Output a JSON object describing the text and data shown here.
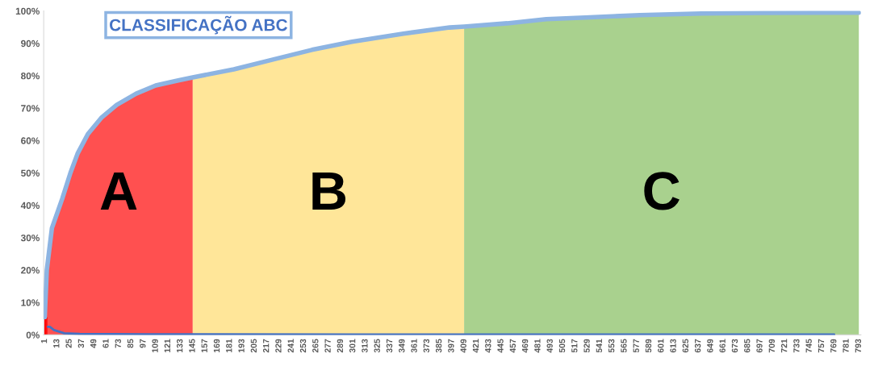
{
  "chart_data": {
    "type": "area",
    "title": "CLASSIFICAÇÃO ABC",
    "xlim": [
      0,
      795
    ],
    "ylim": [
      0,
      100
    ],
    "xticks": [
      1,
      13,
      25,
      37,
      49,
      61,
      73,
      85,
      97,
      109,
      121,
      133,
      145,
      157,
      169,
      181,
      193,
      205,
      217,
      229,
      241,
      253,
      265,
      277,
      289,
      301,
      313,
      325,
      337,
      349,
      361,
      373,
      385,
      397,
      409,
      421,
      433,
      445,
      457,
      469,
      481,
      493,
      505,
      517,
      529,
      541,
      553,
      565,
      577,
      589,
      601,
      613,
      625,
      637,
      649,
      661,
      673,
      685,
      697,
      709,
      721,
      733,
      745,
      757,
      769,
      781,
      793
    ],
    "yticks": [
      {
        "value": 0,
        "label": "0%"
      },
      {
        "value": 10,
        "label": "10%"
      },
      {
        "value": 20,
        "label": "20%"
      },
      {
        "value": 30,
        "label": "30%"
      },
      {
        "value": 40,
        "label": "40%"
      },
      {
        "value": 50,
        "label": "50%"
      },
      {
        "value": 60,
        "label": "60%"
      },
      {
        "value": 70,
        "label": "70%"
      },
      {
        "value": 80,
        "label": "80%"
      },
      {
        "value": 90,
        "label": "90%"
      },
      {
        "value": 100,
        "label": "100%"
      }
    ],
    "grid": false,
    "legend": false,
    "series": [
      {
        "name": "A",
        "color": "#ff5050",
        "x": [
          1,
          3,
          8,
          18,
          26,
          33,
          43,
          56,
          71,
          90,
          109,
          130,
          145
        ],
        "values": [
          5.5,
          20,
          33,
          42,
          50,
          56,
          62,
          67,
          71,
          74.5,
          77,
          78.5,
          79.5
        ]
      },
      {
        "name": "B",
        "color": "#ffe699",
        "x": [
          145,
          185,
          223,
          261,
          300,
          350,
          395,
          409
        ],
        "values": [
          79.5,
          82,
          85,
          88,
          90.5,
          93,
          94.9,
          95.2
        ]
      },
      {
        "name": "C",
        "color": "#a9d18e",
        "x": [
          409,
          451,
          489,
          527,
          580,
          640,
          700,
          780,
          793
        ],
        "values": [
          95.2,
          96.2,
          97.5,
          98,
          98.7,
          99.2,
          99.4,
          99.5,
          99.5
        ]
      },
      {
        "type": "line",
        "color": "#8db4e2",
        "x": [
          1,
          3,
          8,
          18,
          26,
          33,
          43,
          56,
          71,
          90,
          109,
          130,
          145,
          185,
          223,
          261,
          300,
          350,
          395,
          409,
          451,
          489,
          527,
          580,
          640,
          700,
          780,
          793
        ],
        "values": [
          5.5,
          20,
          33,
          42,
          50,
          56,
          62,
          67,
          71,
          74.5,
          77,
          78.5,
          79.5,
          82,
          85,
          88,
          90.5,
          93,
          94.9,
          95.2,
          96.2,
          97.5,
          98,
          98.7,
          99.2,
          99.4,
          99.5,
          99.5
        ]
      },
      {
        "type": "bar",
        "color": "#ff0000",
        "x": [
          1,
          2,
          3
        ],
        "values": [
          5.5,
          5.5,
          5.5
        ]
      },
      {
        "type": "line",
        "color": "#4472c4",
        "x": [
          4,
          6,
          8,
          10,
          15,
          20,
          30,
          35,
          100,
          300,
          769
        ],
        "values": [
          2.5,
          2.5,
          2,
          1.5,
          1,
          0.5,
          0.4,
          0.3,
          0.2,
          0.1,
          0.1
        ]
      }
    ]
  }
}
